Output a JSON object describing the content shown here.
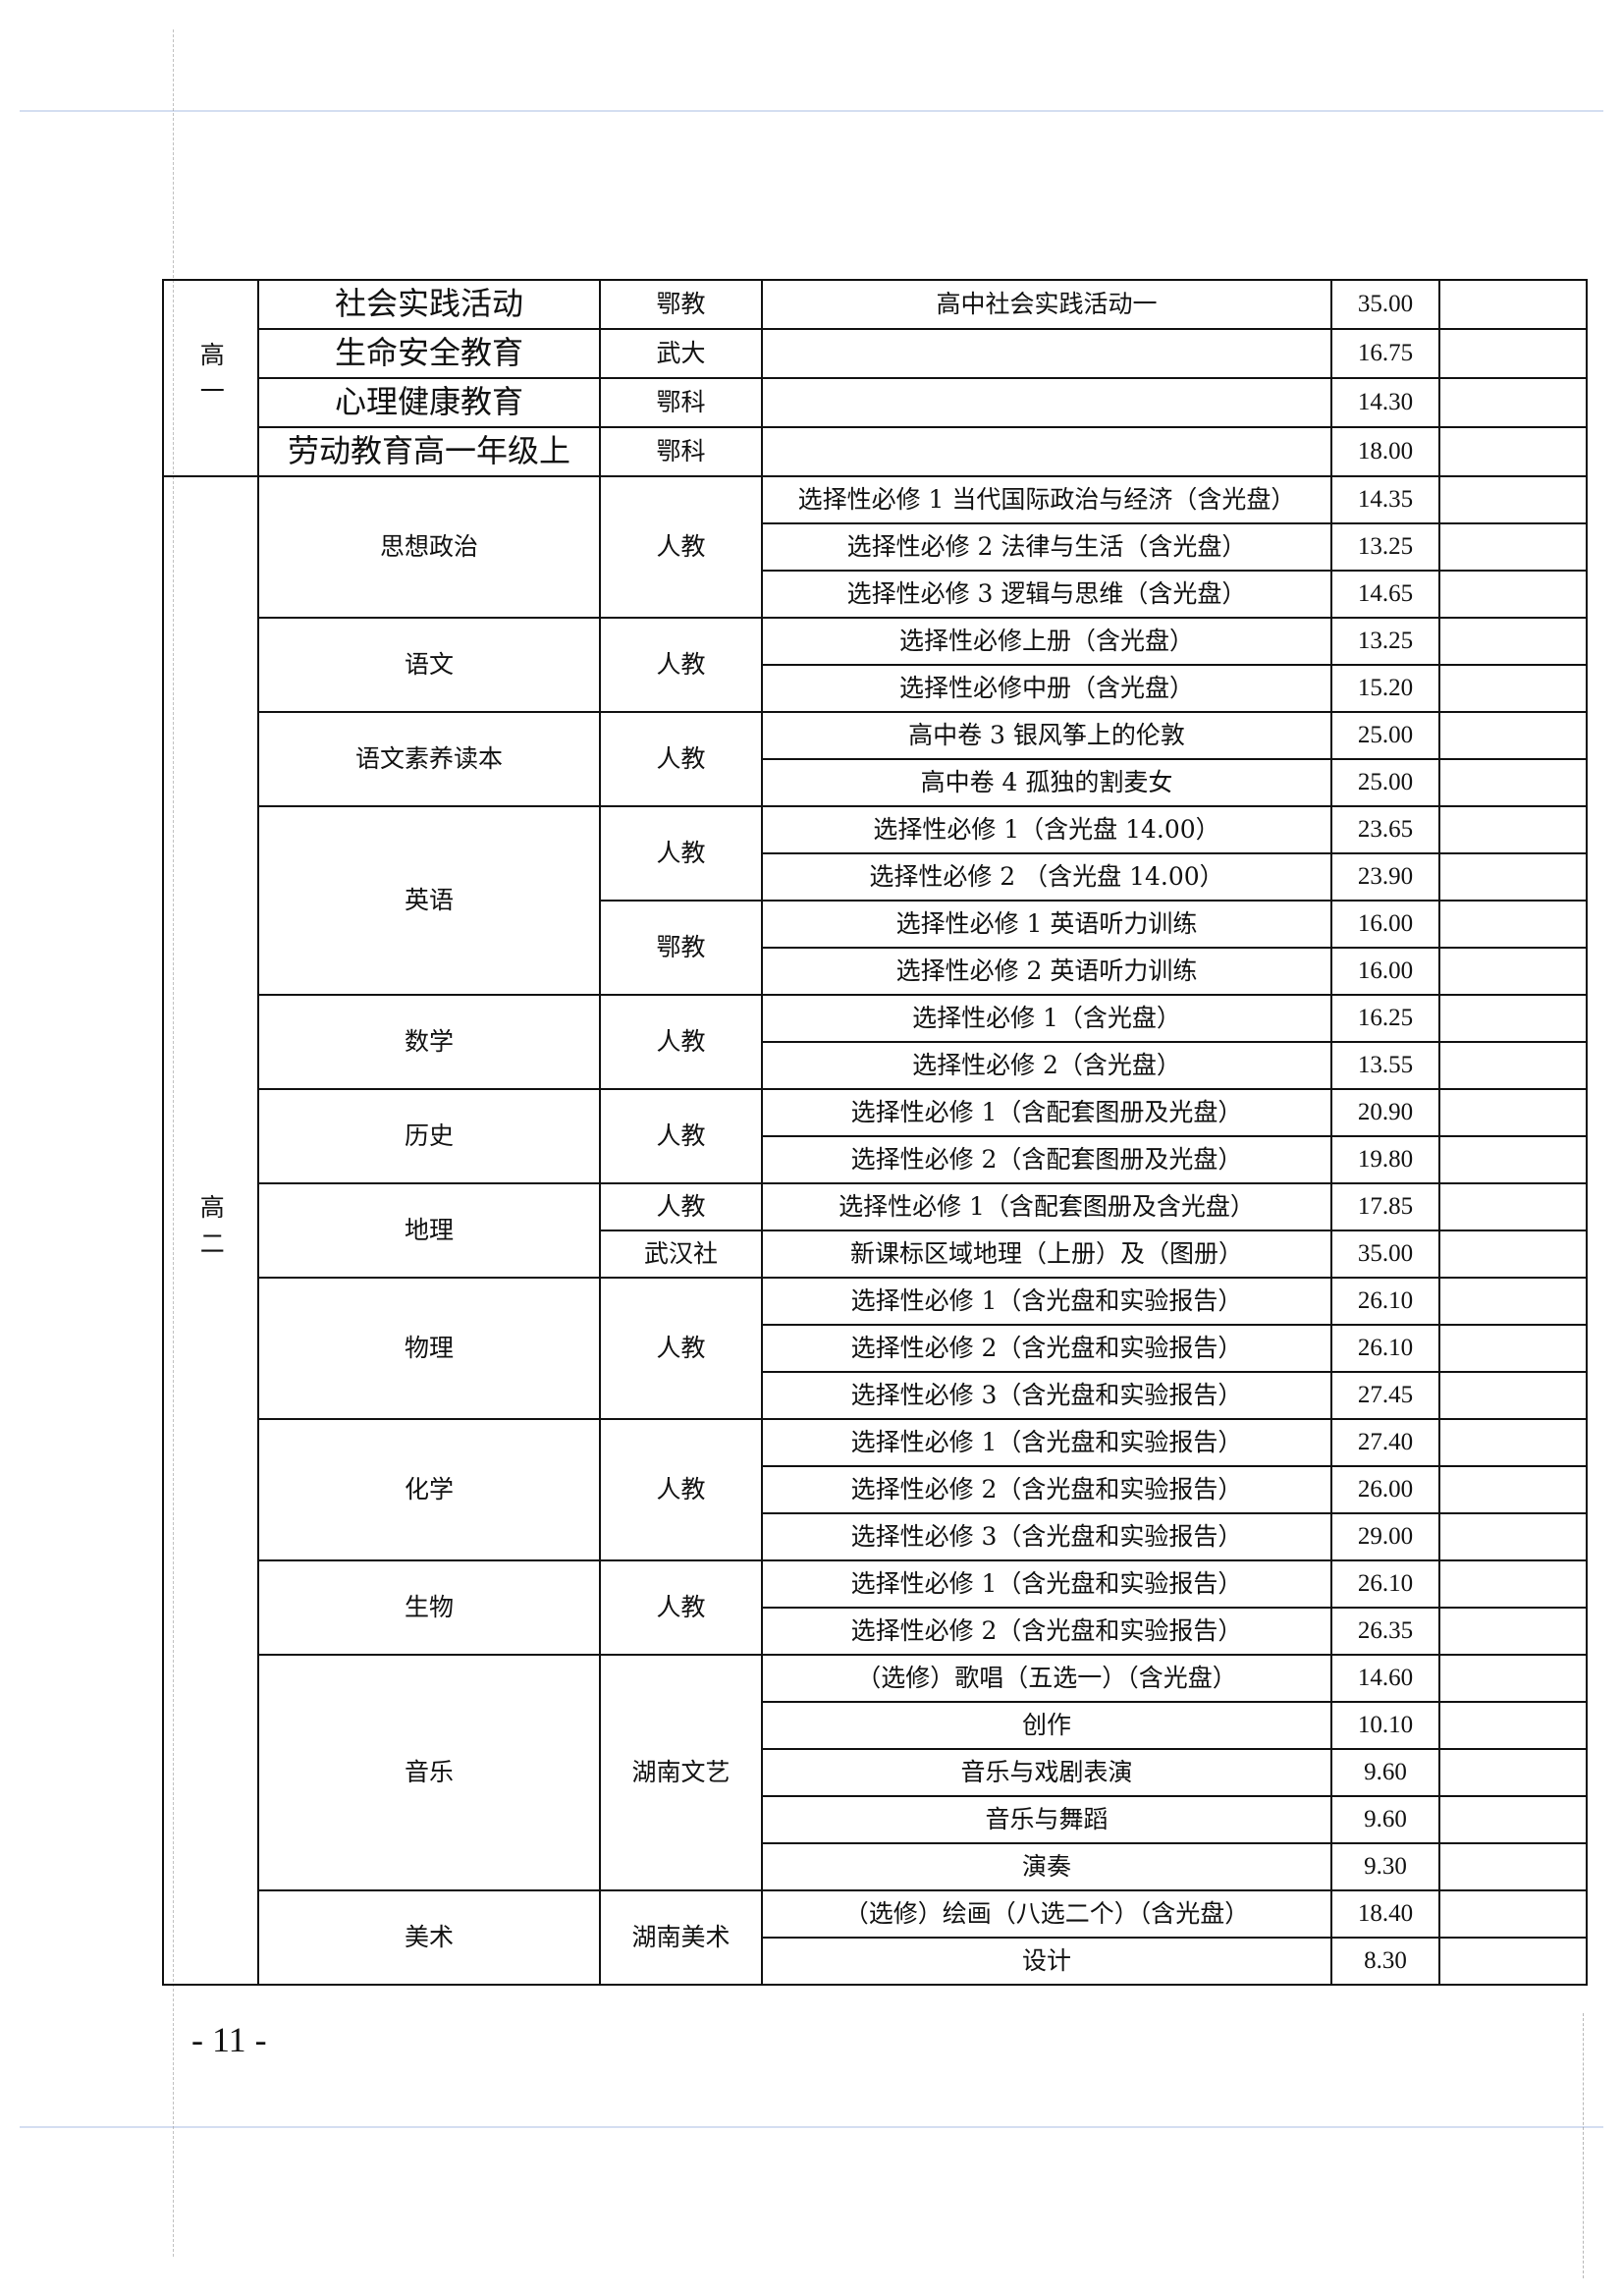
{
  "page_number": "- 11 -",
  "grades": [
    {
      "label": "高一",
      "subjects": [
        {
          "name": "社会实践活动",
          "publishers": [
            {
              "name": "鄂教",
              "items": [
                {
                  "title": "高中社会实践活动一",
                  "price": "35.00"
                }
              ]
            }
          ]
        },
        {
          "name": "生命安全教育",
          "publishers": [
            {
              "name": "武大",
              "items": [
                {
                  "title": "",
                  "price": "16.75"
                }
              ]
            }
          ]
        },
        {
          "name": "心理健康教育",
          "publishers": [
            {
              "name": "鄂科",
              "items": [
                {
                  "title": "",
                  "price": "14.30"
                }
              ]
            }
          ]
        },
        {
          "name": "劳动教育高一年级上",
          "publishers": [
            {
              "name": "鄂科",
              "items": [
                {
                  "title": "",
                  "price": "18.00"
                }
              ]
            }
          ]
        }
      ]
    },
    {
      "label": "高二",
      "subjects": [
        {
          "name": "思想政治",
          "publishers": [
            {
              "name": "人教",
              "items": [
                {
                  "title": "选择性必修 1 当代国际政治与经济（含光盘）",
                  "price": "14.35"
                },
                {
                  "title": "选择性必修 2 法律与生活（含光盘）",
                  "price": "13.25"
                },
                {
                  "title": "选择性必修 3 逻辑与思维（含光盘）",
                  "price": "14.65"
                }
              ]
            }
          ]
        },
        {
          "name": "语文",
          "publishers": [
            {
              "name": "人教",
              "items": [
                {
                  "title": "选择性必修上册（含光盘）",
                  "price": "13.25"
                },
                {
                  "title": "选择性必修中册（含光盘）",
                  "price": "15.20"
                }
              ]
            }
          ]
        },
        {
          "name": "语文素养读本",
          "publishers": [
            {
              "name": "人教",
              "items": [
                {
                  "title": "高中卷 3 银风筝上的伦敦",
                  "price": "25.00"
                },
                {
                  "title": "高中卷 4 孤独的割麦女",
                  "price": "25.00"
                }
              ]
            }
          ]
        },
        {
          "name": "英语",
          "publishers": [
            {
              "name": "人教",
              "items": [
                {
                  "title": "选择性必修 1（含光盘 14.00）",
                  "price": "23.65"
                },
                {
                  "title": "选择性必修 2 （含光盘 14.00）",
                  "price": "23.90"
                }
              ]
            },
            {
              "name": "鄂教",
              "items": [
                {
                  "title": "选择性必修 1 英语听力训练",
                  "price": "16.00"
                },
                {
                  "title": "选择性必修 2 英语听力训练",
                  "price": "16.00"
                }
              ]
            }
          ]
        },
        {
          "name": "数学",
          "publishers": [
            {
              "name": "人教",
              "items": [
                {
                  "title": "选择性必修 1（含光盘）",
                  "price": "16.25"
                },
                {
                  "title": "选择性必修 2（含光盘）",
                  "price": "13.55"
                }
              ]
            }
          ]
        },
        {
          "name": "历史",
          "publishers": [
            {
              "name": "人教",
              "items": [
                {
                  "title": "选择性必修 1（含配套图册及光盘）",
                  "price": "20.90"
                },
                {
                  "title": "选择性必修 2（含配套图册及光盘）",
                  "price": "19.80"
                }
              ]
            }
          ]
        },
        {
          "name": "地理",
          "publishers": [
            {
              "name": "人教",
              "items": [
                {
                  "title": "选择性必修 1（含配套图册及含光盘）",
                  "price": "17.85"
                }
              ]
            },
            {
              "name": "武汉社",
              "items": [
                {
                  "title": "新课标区域地理（上册）及（图册）",
                  "price": "35.00"
                }
              ]
            }
          ]
        },
        {
          "name": "物理",
          "publishers": [
            {
              "name": "人教",
              "items": [
                {
                  "title": "选择性必修 1（含光盘和实验报告）",
                  "price": "26.10"
                },
                {
                  "title": "选择性必修 2（含光盘和实验报告）",
                  "price": "26.10"
                },
                {
                  "title": "选择性必修 3（含光盘和实验报告）",
                  "price": "27.45"
                }
              ]
            }
          ]
        },
        {
          "name": "化学",
          "publishers": [
            {
              "name": "人教",
              "items": [
                {
                  "title": "选择性必修 1（含光盘和实验报告）",
                  "price": "27.40"
                },
                {
                  "title": "选择性必修 2（含光盘和实验报告）",
                  "price": "26.00"
                },
                {
                  "title": "选择性必修 3（含光盘和实验报告）",
                  "price": "29.00"
                }
              ]
            }
          ]
        },
        {
          "name": "生物",
          "publishers": [
            {
              "name": "人教",
              "items": [
                {
                  "title": "选择性必修 1（含光盘和实验报告）",
                  "price": "26.10"
                },
                {
                  "title": "选择性必修 2（含光盘和实验报告）",
                  "price": "26.35"
                }
              ]
            }
          ]
        },
        {
          "name": "音乐",
          "publishers": [
            {
              "name": "湖南文艺",
              "items": [
                {
                  "title": "（选修）歌唱（五选一）（含光盘）",
                  "price": "14.60"
                },
                {
                  "title": "创作",
                  "price": "10.10"
                },
                {
                  "title": "音乐与戏剧表演",
                  "price": "9.60"
                },
                {
                  "title": "音乐与舞蹈",
                  "price": "9.60"
                },
                {
                  "title": "演奏",
                  "price": "9.30"
                }
              ]
            }
          ]
        },
        {
          "name": "美术",
          "publishers": [
            {
              "name": "湖南美术",
              "items": [
                {
                  "title": "（选修）绘画（八选二个）（含光盘）",
                  "price": "18.40"
                },
                {
                  "title": "设计",
                  "price": "8.30"
                }
              ]
            }
          ]
        }
      ]
    }
  ]
}
